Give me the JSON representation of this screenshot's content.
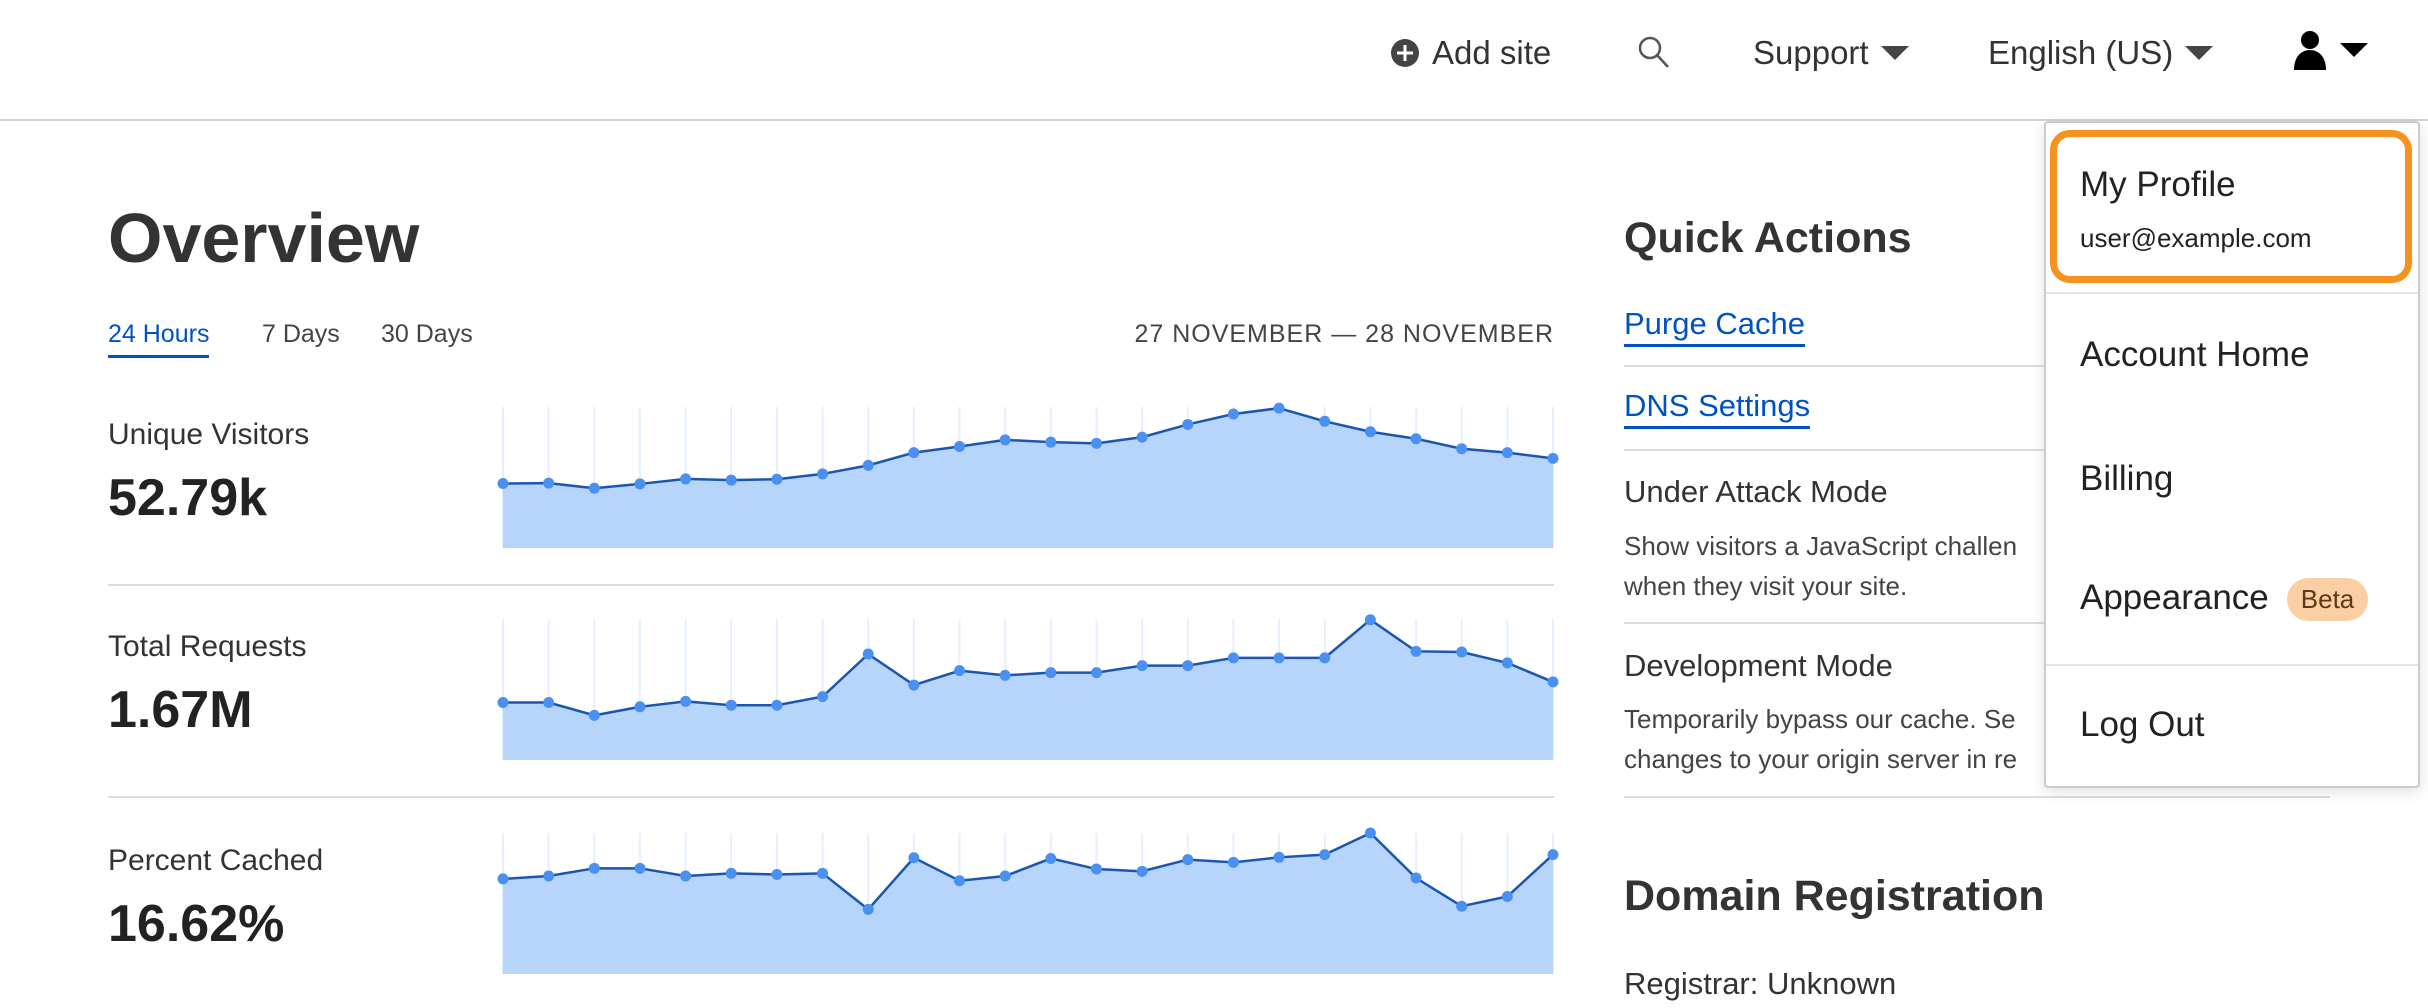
{
  "header": {
    "add_site": "Add site",
    "support": "Support",
    "language": "English (US)"
  },
  "overview": {
    "title": "Overview",
    "tabs": [
      "24 Hours",
      "7 Days",
      "30 Days"
    ],
    "active_tab": "24 Hours",
    "date_range": "27 NOVEMBER — 28 NOVEMBER"
  },
  "metrics": [
    {
      "label": "Unique Visitors",
      "value": "52.79k"
    },
    {
      "label": "Total Requests",
      "value": "1.67M"
    },
    {
      "label": "Percent Cached",
      "value": "16.62%"
    }
  ],
  "quick_actions": {
    "title": "Quick Actions",
    "links": [
      "Purge Cache",
      "DNS Settings"
    ],
    "items": [
      {
        "title": "Under Attack Mode",
        "desc1": "Show visitors a JavaScript challen",
        "desc2": "when they visit your site."
      },
      {
        "title": "Development Mode",
        "desc1": "Temporarily bypass our cache. Se",
        "desc2": "changes to your origin server in re"
      }
    ]
  },
  "domain_registration": {
    "title": "Domain Registration",
    "registrar": "Registrar: Unknown"
  },
  "user_menu": {
    "profile": "My Profile",
    "email": "user@example.com",
    "items": [
      "Account Home",
      "Billing",
      "Appearance"
    ],
    "beta_badge": "Beta",
    "logout": "Log Out"
  },
  "colors": {
    "accent": "#0051c3",
    "highlight": "#f6921e",
    "area_fill": "#b7d5fb",
    "line": "#1a56b0",
    "point": "#4a90f0"
  },
  "chart_data": [
    {
      "type": "area",
      "series_of": "Unique Visitors",
      "ylim": [
        0,
        100
      ],
      "values": [
        46.5,
        46.8,
        43.2,
        46.2,
        49.7,
        48.9,
        49.5,
        53.2,
        59.2,
        68.1,
        72.4,
        77.0,
        75.4,
        74.6,
        78.9,
        87.8,
        95.1,
        99.2,
        90.0,
        82.7,
        77.8,
        70.8,
        68.1,
        64.1
      ]
    },
    {
      "type": "area",
      "series_of": "Total Requests",
      "ylim": [
        0,
        100
      ],
      "values": [
        41.6,
        41.6,
        32.6,
        38.6,
        42.4,
        39.7,
        39.7,
        45.7,
        75.5,
        53.8,
        63.9,
        60.6,
        62.5,
        62.5,
        67.4,
        67.4,
        72.8,
        72.8,
        72.8,
        99.5,
        77.4,
        76.9,
        69.3,
        56.0
      ]
    },
    {
      "type": "area",
      "series_of": "Percent Cached",
      "ylim": [
        0,
        100
      ],
      "values": [
        67.9,
        69.9,
        75.3,
        75.3,
        69.9,
        71.8,
        71.0,
        71.8,
        46.6,
        82.7,
        66.6,
        69.9,
        82.2,
        74.8,
        73.2,
        81.4,
        79.5,
        83.0,
        84.9,
        100,
        68.5,
        48.8,
        55.6,
        84.9
      ]
    }
  ]
}
